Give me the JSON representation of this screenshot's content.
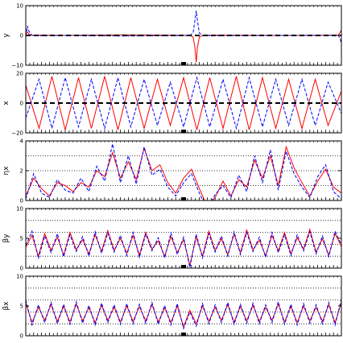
{
  "chart_data": [
    {
      "id": "panel-y",
      "type": "line",
      "ylabel": "y",
      "ylim": [
        -10,
        10
      ],
      "yticks": [
        "10",
        "0",
        "−10"
      ],
      "ytick_values": [
        10,
        0,
        -10
      ],
      "guides": [],
      "zero_line": "dashed-black",
      "colors": {
        "solid": "#ff0000",
        "dashed": "#0000ff"
      },
      "series": [
        {
          "style": "solid-red",
          "x": [
            0,
            0.5,
            1,
            2,
            4,
            12,
            30,
            45,
            52,
            53,
            53.6,
            54,
            54.4,
            55,
            56,
            60,
            80,
            100,
            99,
            99.5,
            100
          ],
          "y": [
            0.3,
            1.2,
            0.4,
            0,
            0.1,
            0,
            0.2,
            0.1,
            0,
            -0.5,
            -4,
            -9,
            -4,
            -0.5,
            0,
            0.1,
            0,
            0.1,
            0,
            0.8,
            1.8
          ]
        },
        {
          "style": "dashed-blue",
          "x": [
            0,
            0.5,
            1,
            2,
            4,
            12,
            30,
            45,
            52,
            53,
            53.6,
            54,
            54.4,
            55,
            56,
            60,
            80,
            99,
            99.5,
            100
          ],
          "y": [
            -0.3,
            3.2,
            1.5,
            0,
            -0.1,
            0,
            -0.2,
            -0.1,
            0,
            0.8,
            5,
            8.3,
            5,
            0.8,
            0,
            -0.1,
            0,
            0,
            -0.9,
            -2.5
          ]
        }
      ]
    },
    {
      "id": "panel-x",
      "type": "line",
      "ylabel": "x",
      "ylim": [
        -20,
        20
      ],
      "yticks": [
        "20",
        "0",
        "−20"
      ],
      "ytick_values": [
        20,
        0,
        -20
      ],
      "guides": [],
      "zero_line": "dashed-black",
      "colors": {
        "solid": "#ff0000",
        "dashed": "#0000ff"
      },
      "series": [
        {
          "style": "solid-red",
          "x": [
            0,
            4.2,
            8.3,
            12.5,
            16.7,
            20.8,
            25,
            29.2,
            33.3,
            37.5,
            41.7,
            45.8,
            50,
            54.2,
            58.3,
            62.5,
            66.7,
            70.8,
            75,
            79.2,
            83.3,
            87.5,
            91.7,
            95.8,
            100
          ],
          "y": [
            12,
            -17,
            18,
            -18,
            17,
            -17,
            18,
            -18,
            17,
            -17,
            16,
            -15,
            17,
            -18,
            17,
            -17,
            18,
            -18,
            17,
            -17,
            16,
            -17,
            16,
            -15,
            8
          ]
        },
        {
          "style": "dashed-blue",
          "x": [
            0,
            4.2,
            8.3,
            12.5,
            16.7,
            20.8,
            25,
            29.2,
            33.3,
            37.5,
            41.7,
            45.8,
            50,
            54.2,
            58.3,
            62.5,
            66.7,
            70.8,
            75,
            79.2,
            83.3,
            87.5,
            91.7,
            95.8,
            100
          ],
          "y": [
            -10,
            16,
            -17,
            17,
            -16,
            16,
            -17,
            17,
            -16,
            16,
            -15,
            14,
            -16,
            17,
            -16,
            16,
            -17,
            17,
            -16,
            16,
            -15,
            16,
            -15,
            14,
            -7
          ]
        }
      ]
    },
    {
      "id": "panel-eta",
      "type": "line",
      "ylabel": "ηx",
      "ylim": [
        0,
        4
      ],
      "yticks": [
        "4",
        "2",
        "0"
      ],
      "ytick_values": [
        4,
        2,
        0
      ],
      "guides": [
        3,
        2,
        1
      ],
      "zero_line": "none",
      "colors": {
        "solid": "#ff0000",
        "dashed": "#0000ff"
      },
      "series": [
        {
          "style": "solid-red",
          "x": [
            0,
            2.5,
            5,
            7.5,
            10,
            12.5,
            15,
            17.5,
            20,
            22.5,
            25,
            27.5,
            30,
            32.5,
            35,
            37.5,
            40,
            42.5,
            45,
            47.5,
            50,
            52.5,
            55,
            57.5,
            60,
            62.5,
            65,
            67.5,
            70,
            72.5,
            75,
            77.5,
            80,
            82.5,
            85,
            87.5,
            90,
            92.5,
            95,
            97.5,
            100
          ],
          "y": [
            0.3,
            1.5,
            0.8,
            0.3,
            1.2,
            1.0,
            0.6,
            1.2,
            0.9,
            2.0,
            1.6,
            3.2,
            1.5,
            2.6,
            1.4,
            3.5,
            2.0,
            2.4,
            1.2,
            0.5,
            1.5,
            2.1,
            0.8,
            -0.4,
            0.2,
            1.3,
            0.3,
            1.4,
            0.9,
            2.7,
            1.5,
            3.0,
            1.0,
            3.6,
            2.2,
            1.2,
            0.3,
            1.3,
            2.1,
            0.9,
            0.5
          ]
        },
        {
          "style": "dashed-blue",
          "x": [
            0,
            2.5,
            5,
            7.5,
            10,
            12.5,
            15,
            17.5,
            20,
            22.5,
            25,
            27.5,
            30,
            32.5,
            35,
            37.5,
            40,
            42.5,
            45,
            47.5,
            50,
            52.5,
            55,
            57.5,
            60,
            62.5,
            65,
            67.5,
            70,
            72.5,
            75,
            77.5,
            80,
            82.5,
            85,
            87.5,
            90,
            92.5,
            95,
            97.5,
            100
          ],
          "y": [
            0.1,
            1.8,
            0.5,
            0.2,
            1.4,
            0.7,
            0.5,
            1.5,
            0.6,
            2.3,
            1.3,
            3.8,
            1.2,
            3.0,
            1.1,
            3.6,
            1.7,
            2.1,
            0.9,
            0.3,
            1.2,
            1.8,
            0.5,
            -0.6,
            0.4,
            1.0,
            0.2,
            1.7,
            0.6,
            3.0,
            1.2,
            3.4,
            0.7,
            3.3,
            1.8,
            0.9,
            0.2,
            1.6,
            2.4,
            0.6,
            0.1
          ]
        }
      ]
    },
    {
      "id": "panel-beta-y",
      "type": "line",
      "ylabel": "βy",
      "ylim": [
        0,
        10
      ],
      "yticks": [
        "10",
        "5",
        "0"
      ],
      "ytick_values": [
        10,
        5,
        0
      ],
      "guides": [
        8,
        6,
        4,
        2
      ],
      "zero_line": "none",
      "colors": {
        "solid": "#ff0000",
        "dashed": "#0000ff"
      },
      "series": [
        {
          "style": "solid-red",
          "x": [
            0,
            2,
            4,
            6,
            8,
            10,
            12,
            14,
            16,
            18,
            20,
            22,
            24,
            26,
            28,
            30,
            32,
            34,
            36,
            38,
            40,
            42,
            44,
            46,
            48,
            50,
            52,
            54,
            56,
            58,
            60,
            62,
            64,
            66,
            68,
            70,
            72,
            74,
            76,
            78,
            80,
            82,
            84,
            86,
            88,
            90,
            92,
            94,
            96,
            98,
            100
          ],
          "y": [
            3.5,
            5.5,
            2.0,
            5.8,
            3.0,
            5.2,
            2.2,
            6.0,
            3.1,
            4.8,
            2.4,
            5.6,
            2.8,
            6.3,
            3.0,
            5.0,
            2.5,
            5.5,
            2.2,
            6.0,
            3.2,
            4.6,
            2.0,
            5.3,
            2.6,
            4.8,
            0.5,
            5.2,
            2.0,
            6.2,
            3.0,
            4.9,
            2.3,
            5.7,
            2.6,
            6.4,
            3.1,
            4.7,
            2.1,
            5.5,
            2.9,
            6.0,
            2.4,
            5.1,
            3.2,
            6.5,
            2.7,
            4.9,
            2.2,
            5.8,
            3.6
          ]
        },
        {
          "style": "dashed-blue",
          "x": [
            0,
            2,
            4,
            6,
            8,
            10,
            12,
            14,
            16,
            18,
            20,
            22,
            24,
            26,
            28,
            30,
            32,
            34,
            36,
            38,
            40,
            42,
            44,
            46,
            48,
            50,
            52,
            54,
            56,
            58,
            60,
            62,
            64,
            66,
            68,
            70,
            72,
            74,
            76,
            78,
            80,
            82,
            84,
            86,
            88,
            90,
            92,
            94,
            96,
            98,
            100
          ],
          "y": [
            3.8,
            6.2,
            1.6,
            5.4,
            2.6,
            5.8,
            1.9,
            5.6,
            2.8,
            5.3,
            2.0,
            6.1,
            2.5,
            5.9,
            2.7,
            5.5,
            2.1,
            6.0,
            1.8,
            5.7,
            2.9,
            5.1,
            1.7,
            5.9,
            2.3,
            5.2,
            0.1,
            5.7,
            1.7,
            5.8,
            2.7,
            5.4,
            2.0,
            6.1,
            2.3,
            6.0,
            2.8,
            5.2,
            1.8,
            6.0,
            2.6,
            5.6,
            2.1,
            5.6,
            2.9,
            6.1,
            2.4,
            5.4,
            1.9,
            6.2,
            3.9
          ]
        }
      ]
    },
    {
      "id": "panel-beta-x",
      "type": "line",
      "ylabel": "βx",
      "ylim": [
        0,
        10
      ],
      "yticks": [
        "10",
        "5",
        "0"
      ],
      "ytick_values": [
        10,
        5,
        0
      ],
      "guides": [
        8,
        6,
        4,
        2
      ],
      "zero_line": "none",
      "colors": {
        "solid": "#ff0000",
        "dashed": "#0000ff"
      },
      "series": [
        {
          "style": "solid-red",
          "x": [
            0,
            2,
            4,
            6,
            8,
            10,
            12,
            14,
            16,
            18,
            20,
            22,
            24,
            26,
            28,
            30,
            32,
            34,
            36,
            38,
            40,
            42,
            44,
            46,
            48,
            50,
            52,
            54,
            56,
            58,
            60,
            62,
            64,
            66,
            68,
            70,
            72,
            74,
            76,
            78,
            80,
            82,
            84,
            86,
            88,
            90,
            92,
            94,
            96,
            98,
            100
          ],
          "y": [
            5.5,
            2.2,
            4.8,
            2.6,
            5.2,
            2.4,
            4.9,
            2.3,
            5.3,
            2.5,
            4.7,
            2.2,
            5.1,
            2.6,
            4.8,
            2.3,
            5.0,
            2.4,
            4.9,
            2.5,
            5.2,
            2.3,
            4.7,
            2.2,
            5.0,
            1.5,
            4.3,
            2.0,
            5.0,
            2.4,
            4.8,
            2.6,
            5.2,
            2.3,
            4.9,
            2.5,
            5.1,
            2.4,
            4.8,
            2.6,
            5.3,
            2.3,
            4.9,
            2.2,
            5.0,
            2.5,
            4.8,
            2.4,
            5.2,
            2.2,
            5.6
          ]
        },
        {
          "style": "dashed-blue",
          "x": [
            0,
            2,
            4,
            6,
            8,
            10,
            12,
            14,
            16,
            18,
            20,
            22,
            24,
            26,
            28,
            30,
            32,
            34,
            36,
            38,
            40,
            42,
            44,
            46,
            48,
            50,
            52,
            54,
            56,
            58,
            60,
            62,
            64,
            66,
            68,
            70,
            72,
            74,
            76,
            78,
            80,
            82,
            84,
            86,
            88,
            90,
            92,
            94,
            96,
            98,
            100
          ],
          "y": [
            6.0,
            1.8,
            5.2,
            2.2,
            5.6,
            2.0,
            5.3,
            1.9,
            5.7,
            2.1,
            5.1,
            1.8,
            5.5,
            2.2,
            5.2,
            1.9,
            5.4,
            2.0,
            5.3,
            2.1,
            5.6,
            1.9,
            5.1,
            1.8,
            5.4,
            1.2,
            4.0,
            1.6,
            5.4,
            2.0,
            5.2,
            2.2,
            5.6,
            1.9,
            5.3,
            2.1,
            5.5,
            2.0,
            5.2,
            2.2,
            5.7,
            1.9,
            5.3,
            1.8,
            5.4,
            2.1,
            5.2,
            2.0,
            5.6,
            1.8,
            6.1
          ]
        }
      ]
    }
  ]
}
